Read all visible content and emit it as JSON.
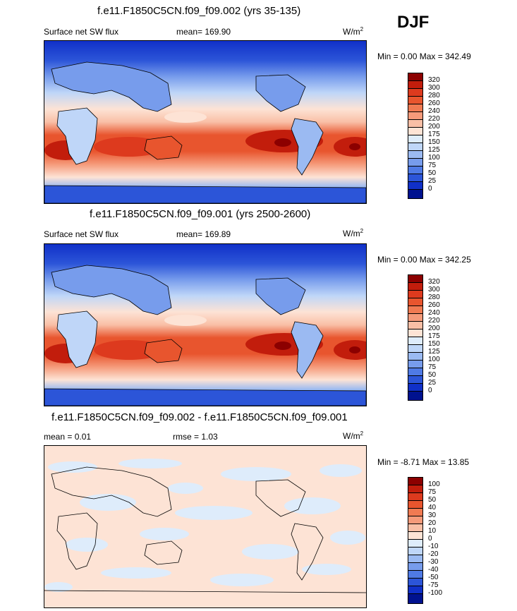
{
  "season_label": "DJF",
  "panels": [
    {
      "title": "f.e11.F1850C5CN.f09_f09.002 (yrs 35-135)",
      "left_label": "Surface net SW flux",
      "center_label": "mean= 169.90",
      "units": "W/m",
      "units_exp": "2",
      "minmax": "Min =   0.00 Max = 342.49",
      "colorbar_labels": [
        "320",
        "300",
        "280",
        "260",
        "240",
        "220",
        "200",
        "175",
        "150",
        "125",
        "100",
        "75",
        "50",
        "25",
        "0"
      ]
    },
    {
      "title": "f.e11.F1850C5CN.f09_f09.001 (yrs 2500-2600)",
      "left_label": "Surface net SW flux",
      "center_label": "mean= 169.89",
      "units": "W/m",
      "units_exp": "2",
      "minmax": "Min =   0.00 Max = 342.25",
      "colorbar_labels": [
        "320",
        "300",
        "280",
        "260",
        "240",
        "220",
        "200",
        "175",
        "150",
        "125",
        "100",
        "75",
        "50",
        "25",
        "0"
      ]
    },
    {
      "title": "f.e11.F1850C5CN.f09_f09.002 - f.e11.F1850C5CN.f09_f09.001",
      "left_label": "mean =   0.01",
      "center_label": "rmse =   1.03",
      "units": "W/m",
      "units_exp": "2",
      "minmax": "Min =  -8.71 Max =  13.85",
      "colorbar_labels": [
        "100",
        "75",
        "50",
        "40",
        "30",
        "20",
        "10",
        "0",
        "-10",
        "-20",
        "-30",
        "-40",
        "-50",
        "-75",
        "-100"
      ]
    }
  ],
  "colors": {
    "scale": [
      "#8c0000",
      "#c21d0c",
      "#dd3a1e",
      "#e8552e",
      "#f07a52",
      "#f59a7a",
      "#f9bfa6",
      "#fde3d5",
      "#deecfb",
      "#bfd6f8",
      "#9bbaf2",
      "#779cec",
      "#4f7ae5",
      "#2c55d8",
      "#1030c8",
      "#00128f"
    ],
    "continent_outline": "#000000"
  }
}
